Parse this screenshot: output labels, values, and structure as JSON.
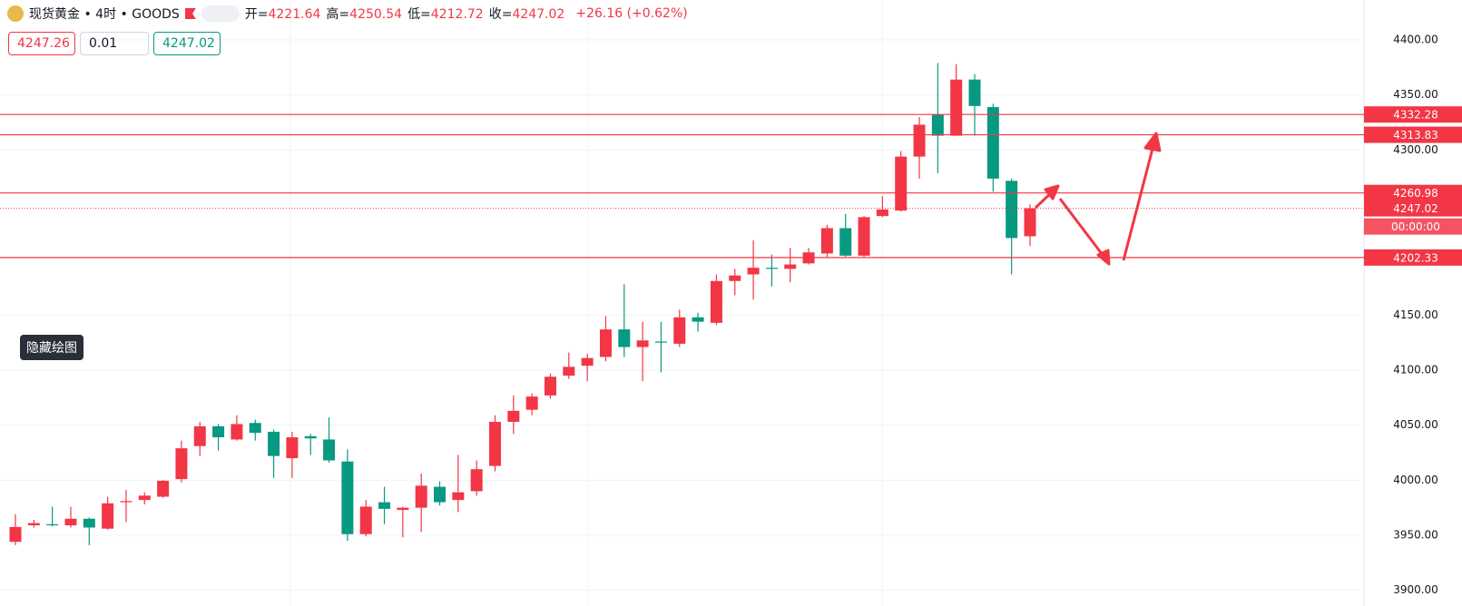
{
  "header": {
    "title": "现货黄金 • 4时 • GOODS",
    "ohlc": [
      {
        "label": "开=",
        "value": "4221.64"
      },
      {
        "label": "高=",
        "value": "4250.54"
      },
      {
        "label": "低=",
        "value": "4212.72"
      },
      {
        "label": "收=",
        "value": "4247.02"
      }
    ],
    "change": "+26.16 (+0.62%)"
  },
  "order": {
    "sell": "4247.26",
    "quantity": "0.01",
    "buy": "4247.02"
  },
  "button": "隐藏绘图",
  "chart_data": {
    "type": "candlestick",
    "up_color": "#f23645",
    "down_color": "#089981",
    "open": [
      3944,
      3959,
      3960,
      3959,
      3965,
      3956,
      3980,
      3982,
      3985,
      4001,
      4031,
      4049,
      4037,
      4052,
      4044,
      4020,
      4040,
      4037,
      4017,
      3951,
      3980,
      3973,
      3975,
      3994,
      3982,
      3990,
      4013,
      4053,
      4064,
      4077,
      4095,
      4104,
      4112,
      4137,
      4121,
      4126,
      4124,
      4148,
      4143,
      4181,
      4187,
      4193,
      4192,
      4197,
      4206,
      4229,
      4204,
      4240,
      4245,
      4294,
      4332,
      4313,
      4364,
      4339,
      4272,
      4221.64
    ],
    "high": [
      3969,
      3964,
      3976,
      3976,
      3966,
      3985,
      3991,
      3989,
      4000,
      4036,
      4053,
      4051,
      4059,
      4055,
      4046,
      4044,
      4042,
      4057,
      4028,
      3982,
      3994,
      3976,
      4006,
      3999,
      4023,
      4018,
      4059,
      4077,
      4079,
      4097,
      4116,
      4115,
      4149,
      4178,
      4144,
      4144,
      4155,
      4152,
      4187,
      4192,
      4218,
      4205,
      4211,
      4211,
      4232,
      4242,
      4240,
      4258,
      4299,
      4330,
      4379,
      4378,
      4369,
      4342,
      4274,
      4250.54
    ],
    "low": [
      3941,
      3957,
      3958,
      3957,
      3941,
      3955,
      3962,
      3978,
      3984,
      3998,
      4022,
      4027,
      4036,
      4036,
      4002,
      4002,
      4023,
      4016,
      3945,
      3949,
      3960,
      3948,
      3953,
      3977,
      3971,
      3986,
      4008,
      4042,
      4059,
      4074,
      4092,
      4090,
      4108,
      4112,
      4090,
      4098,
      4121,
      4135,
      4141,
      4168,
      4164,
      4176,
      4180,
      4196,
      4202,
      4203,
      4203,
      4239,
      4244,
      4274,
      4279,
      4313,
      4313,
      4262,
      4187,
      4212.72
    ],
    "close": [
      3957.5,
      3961,
      3959,
      3965,
      3957,
      3979,
      3981,
      3986,
      3999.5,
      4029,
      4049,
      4039,
      4051,
      4043,
      4022,
      4039,
      4038,
      4018,
      3951,
      3976,
      3974,
      3975,
      3995,
      3980,
      3989,
      4010,
      4053,
      4063,
      4076,
      4094,
      4103,
      4111,
      4137,
      4121,
      4127,
      4125,
      4148,
      4144,
      4181,
      4186,
      4193,
      4192,
      4196,
      4207,
      4229,
      4204,
      4239,
      4246,
      4294,
      4323,
      4313,
      4364,
      4340,
      4274,
      4220,
      4247.02
    ],
    "levels": [
      4332.28,
      4313.83,
      4260.98,
      4202.33
    ],
    "level_color": "#f23645",
    "last_price": 4247.02,
    "countdown": "00:00:00",
    "ylim": [
      3885.7,
      4436.3
    ],
    "yticks": [
      {
        "value": 3900,
        "label": "3900.00"
      },
      {
        "value": 3950,
        "label": "3950.00"
      },
      {
        "value": 4000,
        "label": "4000.00"
      },
      {
        "value": 4050,
        "label": "4050.00"
      },
      {
        "value": 4100,
        "label": "4100.00"
      },
      {
        "value": 4150,
        "label": "4150.00"
      },
      {
        "value": 4300,
        "label": "4300.00"
      },
      {
        "value": 4350,
        "label": "4350.00"
      },
      {
        "value": 4400,
        "label": "4400.00"
      }
    ],
    "grid": true
  }
}
